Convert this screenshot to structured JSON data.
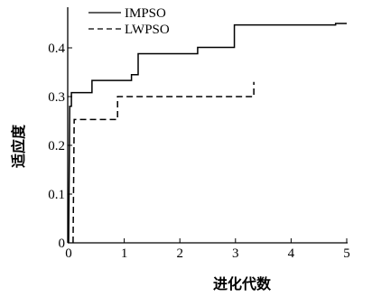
{
  "chart_data": {
    "type": "line",
    "xlabel": "进化代数",
    "ylabel": "适应度",
    "xlim": [
      0,
      5.2
    ],
    "ylim": [
      0,
      0.49
    ],
    "xticks": [
      {
        "value": 0,
        "label": "0"
      },
      {
        "value": 1,
        "label": "1"
      },
      {
        "value": 2,
        "label": "2"
      },
      {
        "value": 3,
        "label": "3"
      },
      {
        "value": 4,
        "label": "4"
      },
      {
        "value": 5,
        "label": "5"
      }
    ],
    "yticks": [
      {
        "value": 0,
        "label": "0"
      },
      {
        "value": 0.1,
        "label": "0.1"
      },
      {
        "value": 0.2,
        "label": "0.2"
      },
      {
        "value": 0.3,
        "label": "0.3"
      },
      {
        "value": 0.4,
        "label": "0.4"
      }
    ],
    "legend_position": "top-left",
    "grid": false,
    "series": [
      {
        "name": "IMPSO",
        "style": "solid",
        "color": "#000000",
        "points": [
          [
            0.0,
            0.0
          ],
          [
            0.02,
            0.28
          ],
          [
            0.05,
            0.28
          ],
          [
            0.05,
            0.308
          ],
          [
            0.42,
            0.308
          ],
          [
            0.42,
            0.333
          ],
          [
            1.13,
            0.333
          ],
          [
            1.13,
            0.345
          ],
          [
            1.25,
            0.345
          ],
          [
            1.25,
            0.388
          ],
          [
            2.32,
            0.388
          ],
          [
            2.32,
            0.401
          ],
          [
            2.98,
            0.401
          ],
          [
            2.98,
            0.447
          ],
          [
            4.8,
            0.447
          ],
          [
            4.8,
            0.45
          ],
          [
            5.0,
            0.45
          ]
        ]
      },
      {
        "name": "LWPSO",
        "style": "dashed",
        "color": "#000000",
        "points": [
          [
            0.08,
            0.0
          ],
          [
            0.1,
            0.253
          ],
          [
            0.88,
            0.253
          ],
          [
            0.88,
            0.3
          ],
          [
            3.33,
            0.3
          ],
          [
            3.33,
            0.33
          ]
        ]
      }
    ]
  }
}
